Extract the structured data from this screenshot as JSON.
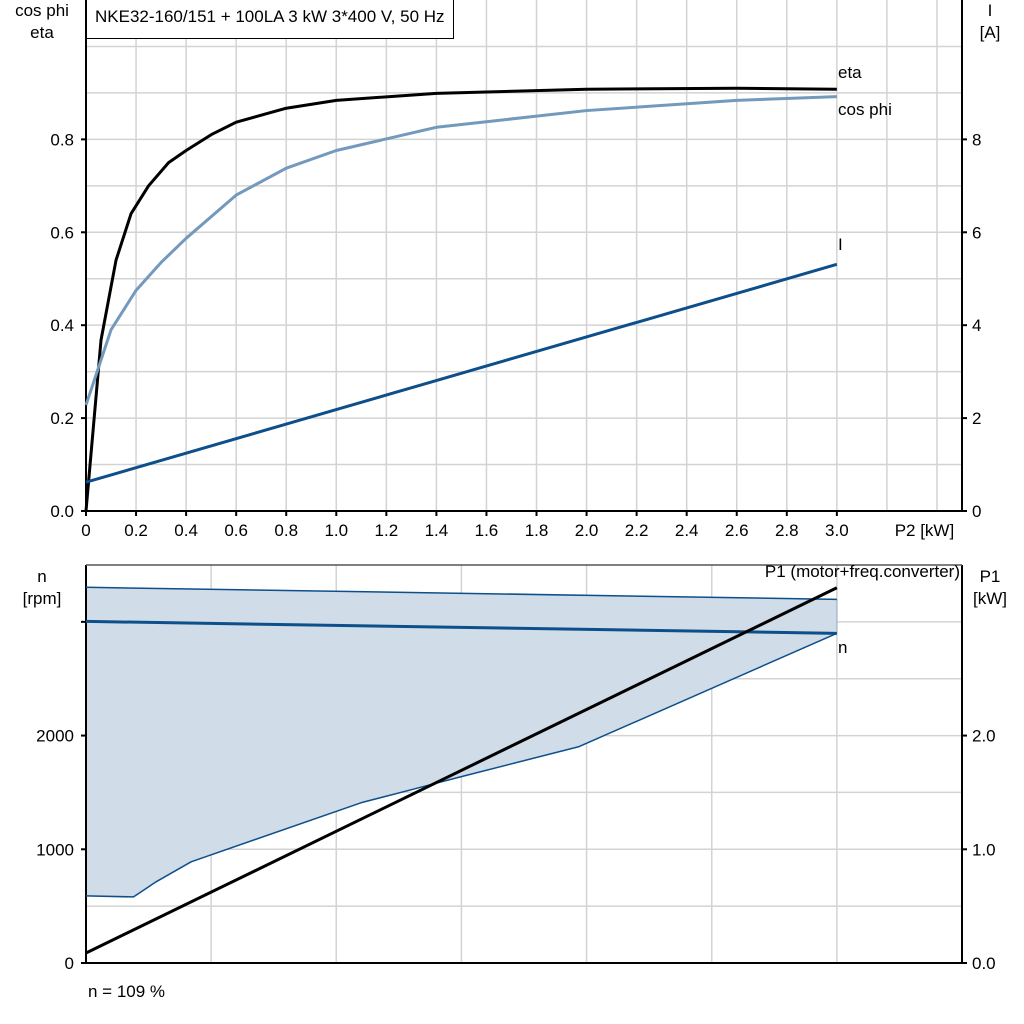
{
  "title": "NKE32-160/151 + 100LA   3 kW   3*400 V, 50 Hz",
  "footnote": "n = 109 %",
  "colors": {
    "eta": "#000000",
    "cos_phi": "#7399bd",
    "current": "#0d4f8b",
    "speed": "#0d4f8b",
    "speed_band_fill": "#d0dce8",
    "p1": "#000000",
    "grid": "#d3d3d3"
  },
  "chart_data": [
    {
      "type": "line",
      "xlabel": "P2 [kW]",
      "ylabel": [
        "cos phi",
        "eta"
      ],
      "y2label": [
        "I",
        "[A]"
      ],
      "xlim": [
        0,
        3.5
      ],
      "ylim": [
        0,
        1.1
      ],
      "y2lim": [
        0,
        11
      ],
      "xticks": [
        "0",
        "0.2",
        "0.4",
        "0.6",
        "0.8",
        "1.0",
        "1.2",
        "1.4",
        "1.6",
        "1.8",
        "2.0",
        "2.2",
        "2.4",
        "2.6",
        "2.8",
        "3.0"
      ],
      "yticks": [
        "0.0",
        "0.2",
        "0.4",
        "0.6",
        "0.8"
      ],
      "y2ticks": [
        "0",
        "2",
        "4",
        "6",
        "8"
      ],
      "grid": true,
      "series": [
        {
          "name": "eta",
          "axis": "left",
          "color": "#000000",
          "x": [
            0,
            0.06,
            0.12,
            0.18,
            0.25,
            0.33,
            0.4,
            0.5,
            0.6,
            0.8,
            1.0,
            1.4,
            2.0,
            2.6,
            3.0
          ],
          "y": [
            0,
            0.368,
            0.54,
            0.64,
            0.7,
            0.75,
            0.776,
            0.81,
            0.837,
            0.867,
            0.884,
            0.899,
            0.908,
            0.91,
            0.908
          ]
        },
        {
          "name": "cos phi",
          "axis": "left",
          "color": "#7399bd",
          "x": [
            0,
            0.1,
            0.2,
            0.3,
            0.4,
            0.6,
            0.8,
            1.0,
            1.4,
            2.0,
            2.6,
            3.0
          ],
          "y": [
            0.228,
            0.39,
            0.475,
            0.535,
            0.587,
            0.68,
            0.738,
            0.776,
            0.826,
            0.862,
            0.884,
            0.892
          ]
        },
        {
          "name": "I",
          "axis": "right",
          "color": "#0d4f8b",
          "x": [
            0,
            3.0
          ],
          "y": [
            0.62,
            5.31
          ]
        }
      ]
    },
    {
      "type": "line",
      "ylabel": [
        "n",
        "[rpm]"
      ],
      "y2label": [
        "P1",
        "[kW]"
      ],
      "xlim": [
        0,
        3.5
      ],
      "ylim": [
        0,
        3500
      ],
      "y2lim": [
        0,
        3.5
      ],
      "yticks": [
        "0",
        "1000",
        "2000"
      ],
      "y2ticks": [
        "0.0",
        "1.0",
        "2.0"
      ],
      "grid": true,
      "series": [
        {
          "name": "n",
          "axis": "left",
          "color": "#0d4f8b",
          "x": [
            0,
            3.0
          ],
          "y": [
            3004,
            2899
          ]
        },
        {
          "name": "n max",
          "axis": "left",
          "color": "#0d4f8b",
          "x": [
            0,
            3.0
          ],
          "y": [
            3304,
            3198
          ]
        },
        {
          "name": "n min",
          "axis": "left",
          "color": "#0d4f8b",
          "x": [
            0,
            0.19,
            0.28,
            0.42,
            1.1,
            1.3,
            1.5,
            1.97,
            3.0
          ],
          "y": [
            590,
            581,
            714,
            890,
            1410,
            1524,
            1639,
            1903,
            2899
          ]
        },
        {
          "name": "P1 (motor+freq.converter)",
          "axis": "right",
          "color": "#000000",
          "x": [
            0,
            3.0
          ],
          "y": [
            0.088,
            3.3
          ]
        }
      ]
    }
  ]
}
